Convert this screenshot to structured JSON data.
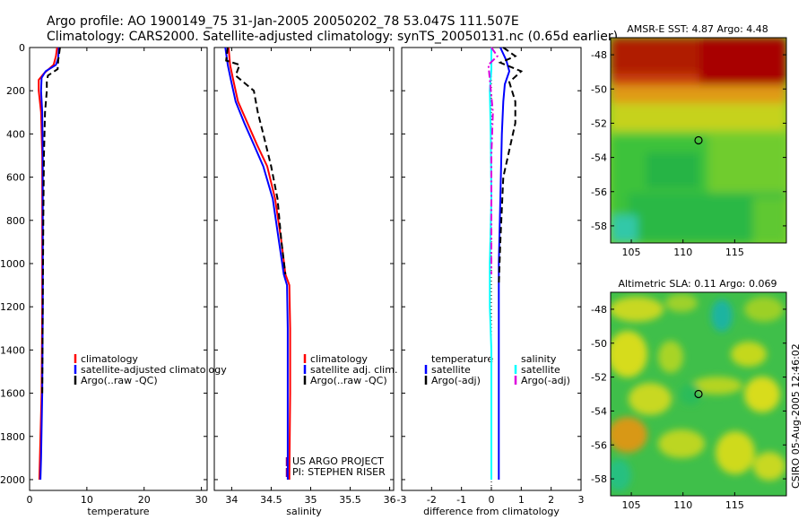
{
  "header": {
    "line1": "Argo profile: AO 1900149_75 31-Jan-2005 20050202_78 53.047S 111.507E",
    "line2": "Climatology: CARS2000. Satellite-adjusted climatology: synTS_20050131.nc (0.65d earlier)"
  },
  "colors": {
    "climatology": "#ff0000",
    "satellite": "#0000ff",
    "argo": "#000000",
    "sat_salinity": "#00ffff",
    "argo_salinity_adj": "#dd00dd"
  },
  "chart_data": [
    {
      "type": "line",
      "id": "temperature",
      "xlabel": "temperature",
      "ylabel": "",
      "xlim": [
        0,
        31
      ],
      "ylim": [
        2050,
        0
      ],
      "y_reversed": true,
      "xticks": [
        0,
        10,
        20,
        30
      ],
      "xtick_labels": [
        "0",
        "10",
        "20",
        "30"
      ],
      "yticks": [
        0,
        200,
        400,
        600,
        800,
        1000,
        1200,
        1400,
        1600,
        1800,
        2000
      ],
      "ytick_labels": [
        "0",
        "200",
        "400",
        "600",
        "800",
        "1000",
        "1200",
        "1400",
        "1600",
        "1800",
        "2000"
      ],
      "series": [
        {
          "name": "climatology",
          "color_key": "climatology",
          "dash": "solid",
          "points": [
            [
              4.8,
              0
            ],
            [
              4.6,
              40
            ],
            [
              4.2,
              80
            ],
            [
              2.5,
              120
            ],
            [
              1.6,
              150
            ],
            [
              1.6,
              200
            ],
            [
              2.0,
              300
            ],
            [
              2.2,
              500
            ],
            [
              2.2,
              800
            ],
            [
              2.2,
              1200
            ],
            [
              2.1,
              1600
            ],
            [
              1.8,
              1900
            ],
            [
              1.7,
              2000
            ]
          ]
        },
        {
          "name": "satellite-adjusted climatology",
          "color_key": "satellite",
          "dash": "solid",
          "points": [
            [
              5.1,
              0
            ],
            [
              5.0,
              50
            ],
            [
              4.6,
              80
            ],
            [
              2.8,
              110
            ],
            [
              2.1,
              140
            ],
            [
              2.0,
              200
            ],
            [
              2.2,
              300
            ],
            [
              2.3,
              500
            ],
            [
              2.3,
              800
            ],
            [
              2.3,
              1200
            ],
            [
              2.2,
              1600
            ],
            [
              2.0,
              1900
            ],
            [
              1.9,
              2000
            ]
          ]
        },
        {
          "name": "Argo(..raw -QC)",
          "color_key": "argo",
          "dash": "dash",
          "points": [
            [
              5.3,
              0
            ],
            [
              5.0,
              60
            ],
            [
              4.9,
              100
            ],
            [
              3.2,
              130
            ],
            [
              3.0,
              160
            ],
            [
              3.0,
              200
            ],
            [
              2.7,
              300
            ],
            [
              2.5,
              500
            ],
            [
              2.4,
              800
            ],
            [
              2.3,
              1200
            ],
            [
              2.2,
              1600
            ]
          ]
        }
      ],
      "legend": [
        "climatology",
        "satellite-adjusted climatology",
        "Argo(..raw -QC)"
      ],
      "legend_position": "lower-right"
    },
    {
      "type": "line",
      "id": "salinity",
      "xlabel": "salinity",
      "ylabel": "",
      "xlim": [
        33.78,
        36.05
      ],
      "ylim": [
        2050,
        0
      ],
      "y_reversed": true,
      "xticks": [
        34,
        34.5,
        35,
        35.5,
        36
      ],
      "xtick_labels": [
        "34",
        "34.5",
        "35",
        "35.5",
        "36"
      ],
      "series": [
        {
          "name": "climatology",
          "color_key": "climatology",
          "dash": "solid",
          "points": [
            [
              33.96,
              0
            ],
            [
              33.98,
              80
            ],
            [
              34.02,
              150
            ],
            [
              34.08,
              250
            ],
            [
              34.2,
              350
            ],
            [
              34.32,
              450
            ],
            [
              34.45,
              550
            ],
            [
              34.55,
              700
            ],
            [
              34.63,
              900
            ],
            [
              34.68,
              1050
            ],
            [
              34.73,
              1100
            ],
            [
              34.74,
              1300
            ],
            [
              34.74,
              1600
            ],
            [
              34.73,
              2000
            ]
          ]
        },
        {
          "name": "satellite adj. clim.",
          "color_key": "satellite",
          "dash": "solid",
          "points": [
            [
              33.92,
              0
            ],
            [
              33.95,
              80
            ],
            [
              33.99,
              150
            ],
            [
              34.05,
              250
            ],
            [
              34.16,
              350
            ],
            [
              34.28,
              450
            ],
            [
              34.4,
              550
            ],
            [
              34.52,
              700
            ],
            [
              34.6,
              900
            ],
            [
              34.66,
              1050
            ],
            [
              34.7,
              1100
            ],
            [
              34.71,
              1300
            ],
            [
              34.71,
              1600
            ],
            [
              34.71,
              2000
            ]
          ]
        },
        {
          "name": "Argo(..raw -QC)",
          "color_key": "argo",
          "dash": "dash",
          "points": [
            [
              33.95,
              0
            ],
            [
              33.93,
              60
            ],
            [
              34.1,
              80
            ],
            [
              34.05,
              130
            ],
            [
              34.28,
              200
            ],
            [
              34.33,
              300
            ],
            [
              34.4,
              400
            ],
            [
              34.5,
              550
            ],
            [
              34.58,
              700
            ],
            [
              34.63,
              900
            ],
            [
              34.68,
              1050
            ]
          ]
        }
      ],
      "legend": [
        "climatology",
        "satellite adj. clim.",
        "Argo(..raw -QC)"
      ],
      "legend_position": "lower-right",
      "footnotes": [
        "US ARGO PROJECT",
        "PI: STEPHEN RISER"
      ]
    },
    {
      "type": "line",
      "id": "difference",
      "xlabel": "difference from climatology",
      "ylabel": "",
      "xlim": [
        -3,
        3
      ],
      "ylim": [
        2050,
        0
      ],
      "y_reversed": true,
      "xticks": [
        -3,
        -2,
        -1,
        0,
        1,
        2,
        3
      ],
      "xtick_labels": [
        "-3",
        "-2",
        "-1",
        "0",
        "1",
        "2",
        "3"
      ],
      "series": [
        {
          "name": "temperature satellite",
          "color_key": "satellite",
          "dash": "solid",
          "points": [
            [
              0.3,
              0
            ],
            [
              0.5,
              60
            ],
            [
              0.6,
              110
            ],
            [
              0.45,
              170
            ],
            [
              0.4,
              250
            ],
            [
              0.35,
              400
            ],
            [
              0.3,
              700
            ],
            [
              0.25,
              1000
            ],
            [
              0.25,
              1400
            ],
            [
              0.25,
              2000
            ]
          ]
        },
        {
          "name": "temperature Argo(-adj)",
          "color_key": "argo",
          "dash": "dash",
          "points": [
            [
              0.4,
              0
            ],
            [
              0.8,
              40
            ],
            [
              0.3,
              70
            ],
            [
              1.0,
              110
            ],
            [
              0.6,
              160
            ],
            [
              0.8,
              250
            ],
            [
              0.8,
              350
            ],
            [
              0.4,
              600
            ],
            [
              0.3,
              900
            ],
            [
              0.25,
              1100
            ]
          ]
        },
        {
          "name": "salinity satellite",
          "color_key": "sat_salinity",
          "dash": "solid",
          "points": [
            [
              0.0,
              0
            ],
            [
              0.0,
              100
            ],
            [
              -0.05,
              200
            ],
            [
              -0.02,
              400
            ],
            [
              0.0,
              700
            ],
            [
              -0.05,
              1000
            ],
            [
              -0.05,
              1200
            ],
            [
              0.0,
              1400
            ],
            [
              0.0,
              2000
            ]
          ]
        },
        {
          "name": "salinity Argo(-adj)",
          "color_key": "argo_salinity_adj",
          "dash": "dashdot",
          "points": [
            [
              0.0,
              0
            ],
            [
              0.2,
              40
            ],
            [
              -0.1,
              80
            ],
            [
              -0.05,
              150
            ],
            [
              0.05,
              300
            ],
            [
              0.0,
              500
            ],
            [
              0.0,
              700
            ],
            [
              0.0,
              900
            ],
            [
              0.0,
              1050
            ]
          ]
        }
      ],
      "legend": [
        "temperature",
        "satellite",
        "Argo(-adj)",
        "salinity",
        "satellite",
        "Argo(-adj)"
      ],
      "legend_position": "lower-center"
    },
    {
      "type": "heatmap",
      "id": "sst_map",
      "title": "AMSR-E SST: 4.87 Argo: 4.48",
      "xlim": [
        103,
        120
      ],
      "ylim": [
        -59,
        -47
      ],
      "xticks": [
        105,
        110,
        115
      ],
      "xtick_labels": [
        "105",
        "110",
        "115"
      ],
      "yticks": [
        -48,
        -50,
        -52,
        -54,
        -56,
        -58
      ],
      "ytick_labels": [
        "-48",
        "-50",
        "-52",
        "-54",
        "-56",
        "-58"
      ],
      "marker": {
        "lon": 111.5,
        "lat": -53.0
      }
    },
    {
      "type": "heatmap",
      "id": "sla_map",
      "title": "Altimetric SLA: 0.11 Argo: 0.069",
      "xlim": [
        103,
        120
      ],
      "ylim": [
        -59,
        -47
      ],
      "xticks": [
        105,
        110,
        115
      ],
      "xtick_labels": [
        "105",
        "110",
        "115"
      ],
      "yticks": [
        -48,
        -50,
        -52,
        -54,
        -56,
        -58
      ],
      "ytick_labels": [
        "-48",
        "-50",
        "-52",
        "-54",
        "-56",
        "-58"
      ],
      "marker": {
        "lon": 111.5,
        "lat": -53.0
      }
    }
  ],
  "side_label": "CSIRO 05-Aug-2005 12:46:02"
}
